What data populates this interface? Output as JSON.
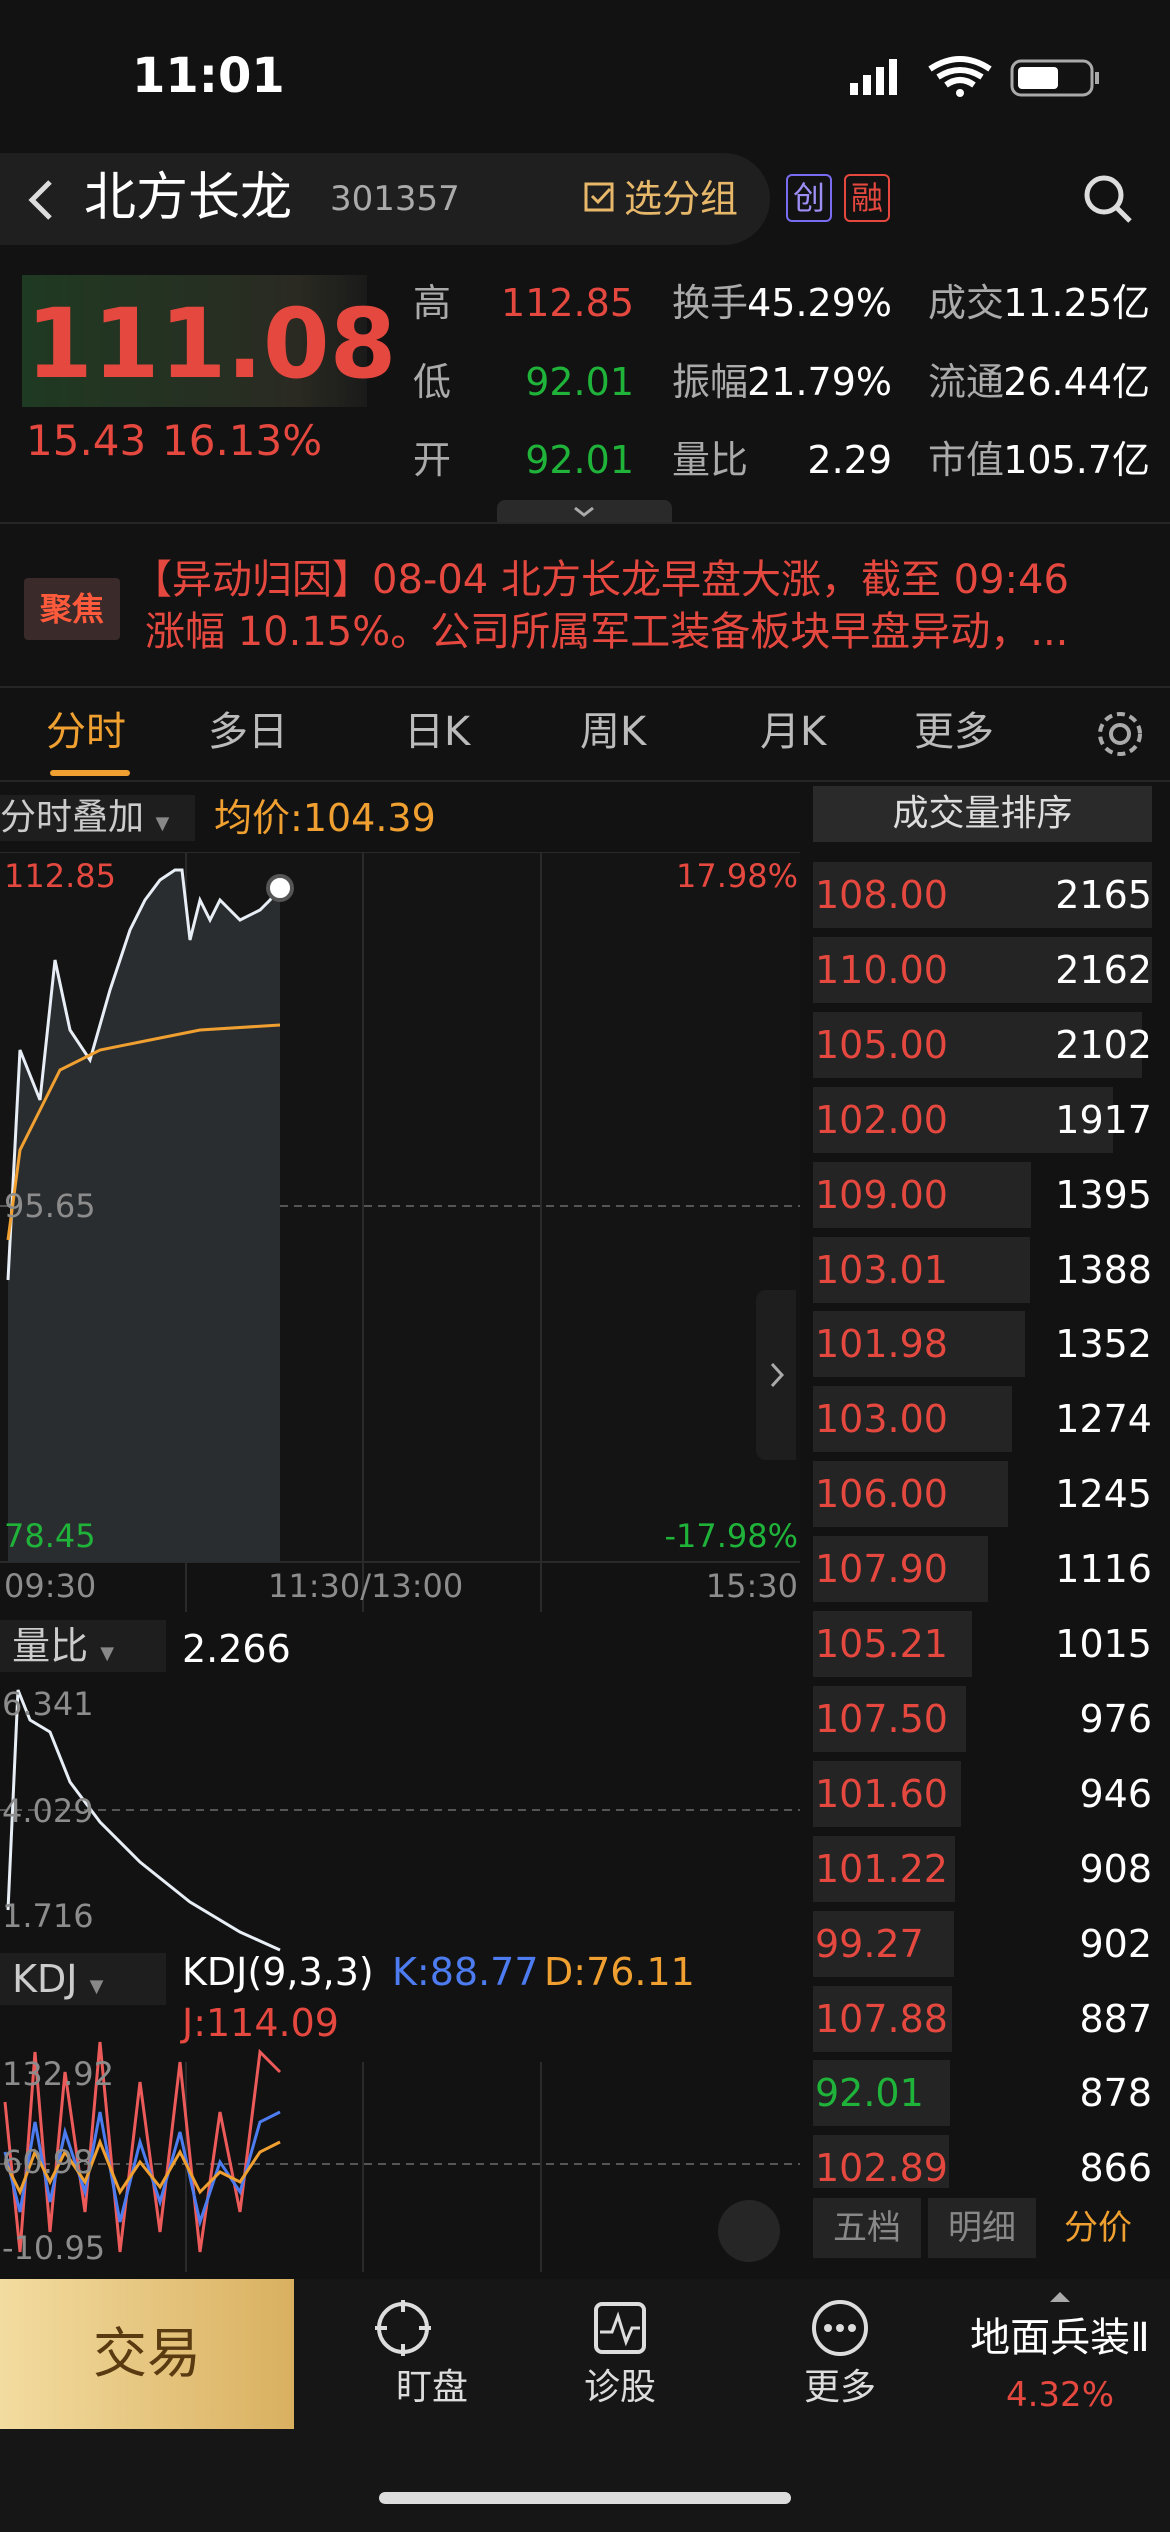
{
  "status_bar": {
    "time": "11:01"
  },
  "header": {
    "title": "北方长龙",
    "code": "301357",
    "group_button": "选分组",
    "badges": [
      "创",
      "融"
    ]
  },
  "quote": {
    "price": "111.08",
    "change": "15.43",
    "change_pct": "16.13%",
    "stats": [
      [
        "高",
        "112.85",
        "换手",
        "45.29%",
        "成交",
        "11.25亿"
      ],
      [
        "低",
        "92.01",
        "振幅",
        "21.79%",
        "流通",
        "26.44亿"
      ],
      [
        "开",
        "92.01",
        "量比",
        "2.29",
        "市值",
        "105.7亿"
      ]
    ]
  },
  "news": {
    "badge": "聚焦",
    "lines": [
      "【异动归因】08-04 北方长龙早盘大涨，截至 09:46",
      "涨幅 10.15%。公司所属军工装备板块早盘异动，..."
    ]
  },
  "tabs": [
    "分时",
    "多日",
    "日K",
    "周K",
    "月K",
    "更多"
  ],
  "chart": {
    "overlay": "分时叠加",
    "avg_label": "均价:",
    "avg_value": "104.39",
    "high": "112.85",
    "high_pct": "17.98%",
    "mid": "95.65",
    "low": "78.45",
    "low_pct": "-17.98%",
    "time_labels": [
      "09:30",
      "11:30/13:00",
      "15:30"
    ]
  },
  "volume_ratio": {
    "label": "量比",
    "value": "2.266",
    "axis": [
      "6.341",
      "4.029",
      "1.716"
    ]
  },
  "kdj": {
    "label": "KDJ",
    "params": "KDJ(9,3,3)",
    "k": "K:88.77",
    "d": "D:76.11",
    "j": "J:114.09",
    "axis": [
      "132.92",
      "60.98",
      "-10.95"
    ]
  },
  "ranking": {
    "title": "成交量排序",
    "rows": [
      {
        "price": "108.00",
        "volume": 2165,
        "price_color": "#e5483f"
      },
      {
        "price": "110.00",
        "volume": 2162,
        "price_color": "#e5483f"
      },
      {
        "price": "105.00",
        "volume": 2102,
        "price_color": "#e5483f"
      },
      {
        "price": "102.00",
        "volume": 1917,
        "price_color": "#e5483f"
      },
      {
        "price": "109.00",
        "volume": 1395,
        "price_color": "#e5483f"
      },
      {
        "price": "103.01",
        "volume": 1388,
        "price_color": "#e5483f"
      },
      {
        "price": "101.98",
        "volume": 1352,
        "price_color": "#e5483f"
      },
      {
        "price": "103.00",
        "volume": 1274,
        "price_color": "#e5483f"
      },
      {
        "price": "106.00",
        "volume": 1245,
        "price_color": "#e5483f"
      },
      {
        "price": "107.90",
        "volume": 1116,
        "price_color": "#e5483f"
      },
      {
        "price": "105.21",
        "volume": 1015,
        "price_color": "#e5483f"
      },
      {
        "price": "107.50",
        "volume": 976,
        "price_color": "#e5483f"
      },
      {
        "price": "101.60",
        "volume": 946,
        "price_color": "#e5483f"
      },
      {
        "price": "101.22",
        "volume": 908,
        "price_color": "#e5483f"
      },
      {
        "price": "99.27",
        "volume": 902,
        "price_color": "#e5483f"
      },
      {
        "price": "107.88",
        "volume": 887,
        "price_color": "#e5483f"
      },
      {
        "price": "92.01",
        "volume": 878,
        "price_color": "#1fb33a"
      },
      {
        "price": "102.89",
        "volume": 866,
        "price_color": "#e5483f"
      }
    ],
    "tabs": [
      "五档",
      "明细",
      "分价"
    ]
  },
  "bottom_nav": {
    "trade": "交易",
    "items": [
      "盯盘",
      "诊股",
      "更多"
    ],
    "sector": "地面兵装Ⅱ",
    "sector_change": "4.32%"
  }
}
